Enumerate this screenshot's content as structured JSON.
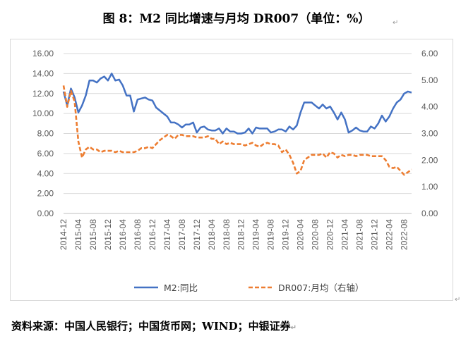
{
  "title": "图 8：M2 同比增速与月均 DR007（单位：%）",
  "source": "资料来源：中国人民银行；中国货币网；WIND；中银证券",
  "paragraph_mark": "↵",
  "chart_data": {
    "type": "line",
    "title": "",
    "xlabel": "",
    "ylabel": "",
    "ylim_left": [
      0,
      16
    ],
    "ylim_right": [
      0,
      6
    ],
    "left_ticks": [
      "0.00",
      "2.00",
      "4.00",
      "6.00",
      "8.00",
      "10.00",
      "12.00",
      "14.00",
      "16.00"
    ],
    "right_ticks": [
      "0.00",
      "1.00",
      "2.00",
      "3.00",
      "4.00",
      "5.00",
      "6.00"
    ],
    "x_tick_labels": [
      "2014-12",
      "2015-04",
      "2015-08",
      "2015-12",
      "2016-04",
      "2016-08",
      "2016-12",
      "2017-04",
      "2017-08",
      "2017-12",
      "2018-04",
      "2018-08",
      "2018-12",
      "2019-04",
      "2019-08",
      "2019-12",
      "2020-04",
      "2020-08",
      "2020-12",
      "2021-04",
      "2021-08",
      "2021-12",
      "2022-04",
      "2022-08"
    ],
    "x_start": "2014-12",
    "grid": "horizontal",
    "legend_position": "bottom",
    "series": [
      {
        "name": "M2:同比",
        "axis": "left",
        "color": "#4472C4",
        "style": "solid",
        "values": [
          12.2,
          10.8,
          12.5,
          11.6,
          10.1,
          10.8,
          11.8,
          13.3,
          13.3,
          13.1,
          13.5,
          13.7,
          13.3,
          14.0,
          13.3,
          13.4,
          12.8,
          11.8,
          11.8,
          10.2,
          11.4,
          11.5,
          11.6,
          11.4,
          11.3,
          10.6,
          10.3,
          10.0,
          9.7,
          9.1,
          9.1,
          8.9,
          8.6,
          8.9,
          8.9,
          9.1,
          8.1,
          8.6,
          8.7,
          8.4,
          8.3,
          8.3,
          8.5,
          8.0,
          8.5,
          8.2,
          8.2,
          8.0,
          8.0,
          8.1,
          8.5,
          8.0,
          8.6,
          8.5,
          8.5,
          8.5,
          8.1,
          8.2,
          8.4,
          8.4,
          8.2,
          8.7,
          8.4,
          8.8,
          10.1,
          11.1,
          11.1,
          11.1,
          10.8,
          10.5,
          10.9,
          10.5,
          10.7,
          10.1,
          9.4,
          10.1,
          9.4,
          8.1,
          8.3,
          8.6,
          8.3,
          8.2,
          8.2,
          8.7,
          8.5,
          9.0,
          9.8,
          9.2,
          9.7,
          10.5,
          11.1,
          11.4,
          12.0,
          12.2,
          12.1
        ]
      },
      {
        "name": "DR007:月均（右轴）",
        "axis": "right",
        "color": "#ED7D31",
        "style": "dashed",
        "values": [
          4.8,
          4.0,
          4.6,
          4.2,
          2.7,
          2.1,
          2.4,
          2.5,
          2.4,
          2.4,
          2.3,
          2.35,
          2.35,
          2.35,
          2.3,
          2.35,
          2.3,
          2.3,
          2.3,
          2.3,
          2.35,
          2.45,
          2.45,
          2.5,
          2.45,
          2.6,
          2.75,
          2.85,
          2.95,
          2.9,
          2.8,
          2.95,
          2.95,
          2.9,
          2.9,
          2.9,
          2.85,
          2.85,
          2.85,
          2.9,
          2.8,
          2.8,
          2.6,
          2.7,
          2.6,
          2.65,
          2.6,
          2.6,
          2.6,
          2.55,
          2.6,
          2.65,
          2.55,
          2.5,
          2.6,
          2.65,
          2.6,
          2.6,
          2.55,
          2.3,
          2.4,
          2.2,
          1.9,
          1.5,
          1.6,
          2.0,
          2.1,
          2.2,
          2.2,
          2.2,
          2.25,
          2.1,
          2.3,
          2.25,
          2.1,
          2.2,
          2.15,
          2.2,
          2.2,
          2.15,
          2.2,
          2.2,
          2.2,
          2.15,
          2.15,
          2.15,
          2.15,
          2.0,
          1.75,
          1.7,
          1.75,
          1.6,
          1.45,
          1.55,
          1.65
        ]
      }
    ]
  }
}
